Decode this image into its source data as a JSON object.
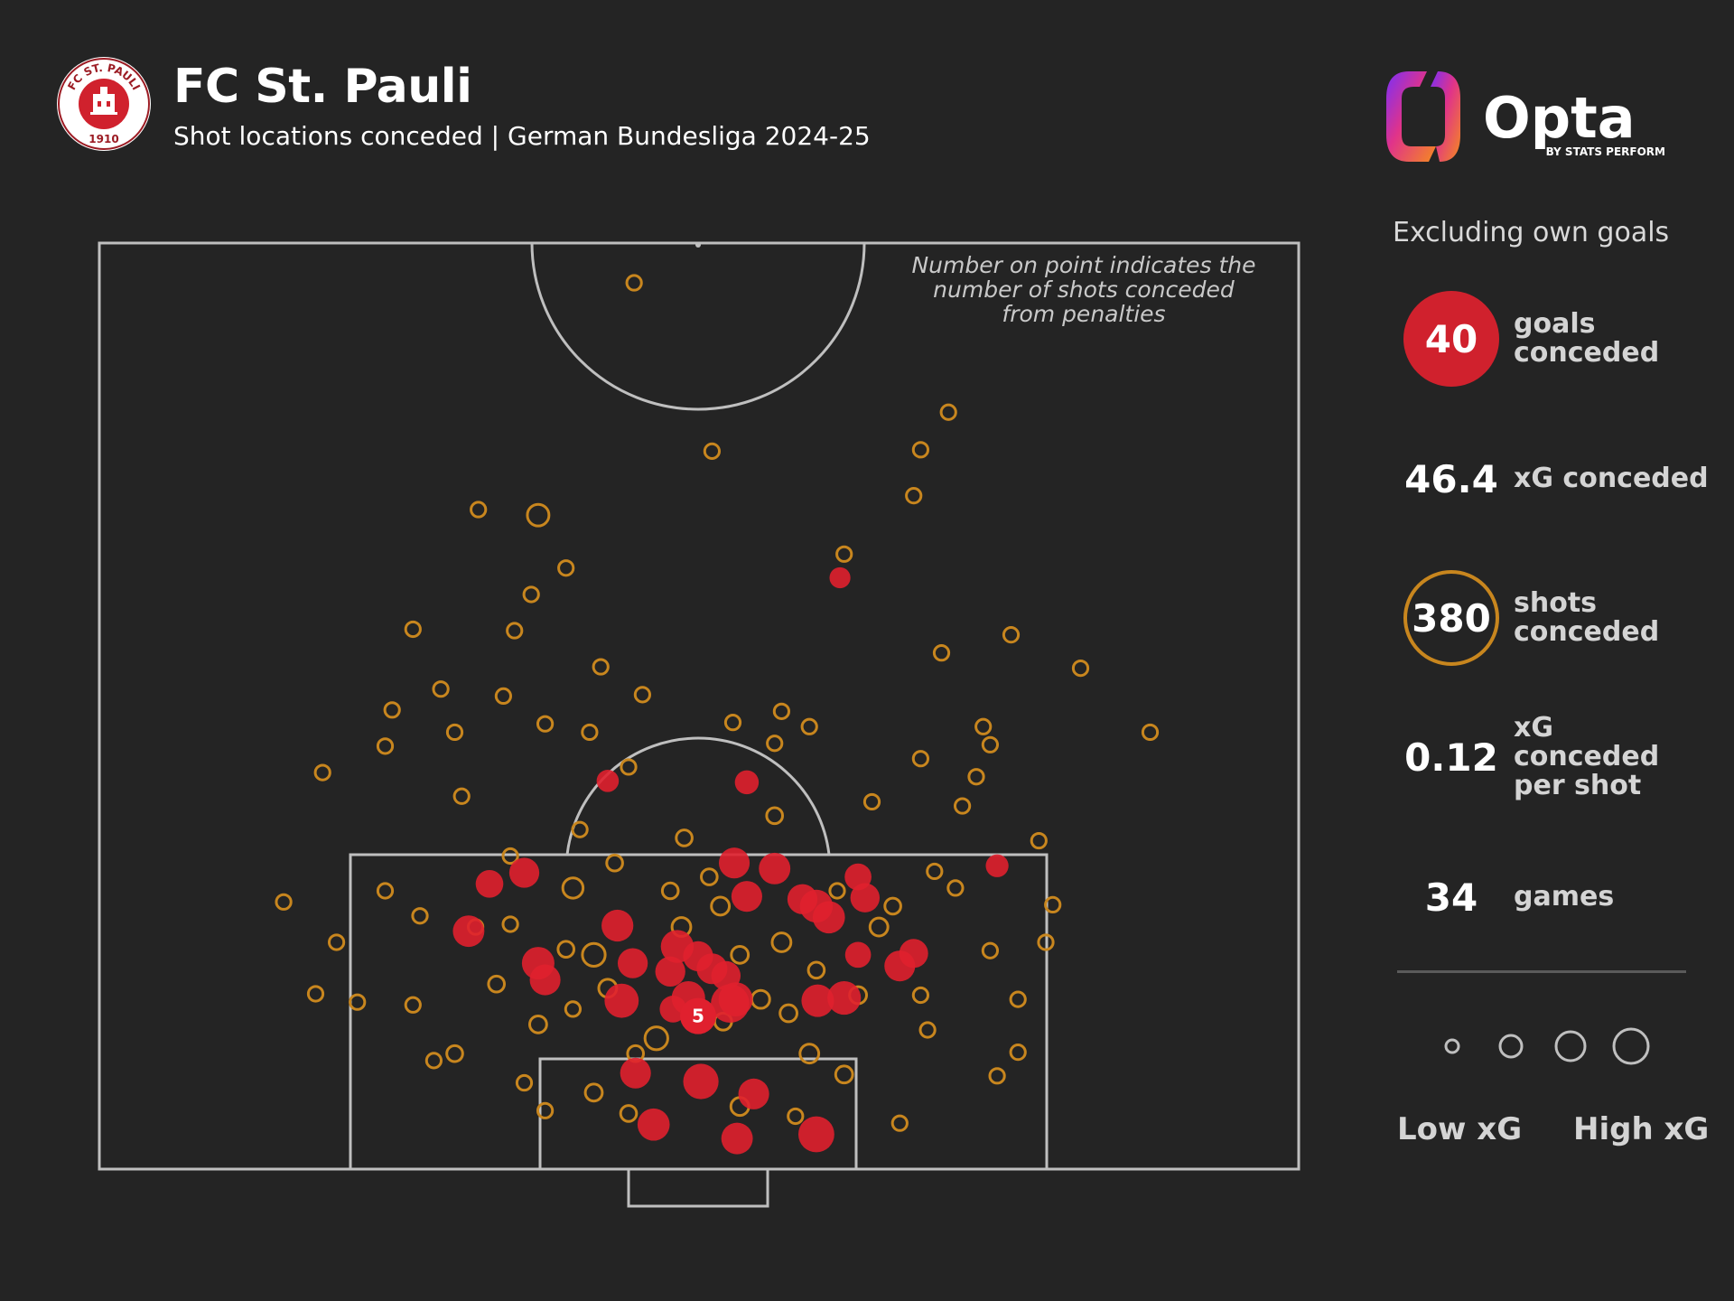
{
  "header": {
    "team": "FC St. Pauli",
    "subtitle": "Shot locations conceded | German Bundesliga 2024-25",
    "crest_text": "FC ST. PAULI",
    "crest_year": "1910"
  },
  "brand": {
    "name": "Opta",
    "byline": "BY STATS PERFORM"
  },
  "note": "Number on point indicates the number of shots conceded from penalties",
  "stats": {
    "filter": "Excluding own goals",
    "goals": {
      "value": "40",
      "label": "goals conceded"
    },
    "xg": {
      "value": "46.4",
      "label": "xG conceded"
    },
    "shots": {
      "value": "380",
      "label": "shots conceded"
    },
    "xg_per_shot": {
      "value": "0.12",
      "label": "xG conceded per shot"
    },
    "games": {
      "value": "34",
      "label": "games"
    }
  },
  "legend": {
    "low": "Low xG",
    "high": "High xG"
  },
  "colors": {
    "background": "#242424",
    "goal": "#e0202e",
    "shot": "#c8861e",
    "lines": "#bfbfbf"
  },
  "chart_data": {
    "type": "scatter",
    "penalty_label": "5",
    "penalty_point": {
      "x": 0,
      "y": 11
    },
    "series": [
      {
        "name": "goals conceded",
        "points": [
          {
            "x": 8.5,
            "y": 2.5,
            "xg": 0.46
          },
          {
            "x": 2.8,
            "y": 2.2,
            "xg": 0.32
          },
          {
            "x": -3.2,
            "y": 3.2,
            "xg": 0.34
          },
          {
            "x": 0.2,
            "y": 6.3,
            "xg": 0.44
          },
          {
            "x": -4.5,
            "y": 6.9,
            "xg": 0.3
          },
          {
            "x": -5.5,
            "y": 12.1,
            "xg": 0.4
          },
          {
            "x": -0.7,
            "y": 12.3,
            "xg": 0.38
          },
          {
            "x": 2.3,
            "y": 11.9,
            "xg": 0.55
          },
          {
            "x": 2.7,
            "y": 12.2,
            "xg": 0.4
          },
          {
            "x": 8.6,
            "y": 12.1,
            "xg": 0.35
          },
          {
            "x": 10.5,
            "y": 12.3,
            "xg": 0.38
          },
          {
            "x": 14.5,
            "y": 14.6,
            "xg": 0.3
          },
          {
            "x": 15.5,
            "y": 15.5,
            "xg": 0.25
          },
          {
            "x": -11.5,
            "y": 14.8,
            "xg": 0.35
          },
          {
            "x": -11.0,
            "y": 13.6,
            "xg": 0.3
          },
          {
            "x": -16.5,
            "y": 17.1,
            "xg": 0.32
          },
          {
            "x": -5.8,
            "y": 17.5,
            "xg": 0.33
          },
          {
            "x": -1.5,
            "y": 16.0,
            "xg": 0.36
          },
          {
            "x": 2.6,
            "y": 22.0,
            "xg": 0.3
          },
          {
            "x": 5.5,
            "y": 21.6,
            "xg": 0.32
          },
          {
            "x": 8.5,
            "y": 18.9,
            "xg": 0.36
          },
          {
            "x": 9.4,
            "y": 18.1,
            "xg": 0.34
          },
          {
            "x": 12.0,
            "y": 19.5,
            "xg": 0.26
          },
          {
            "x": -4.7,
            "y": 14.8,
            "xg": 0.28
          },
          {
            "x": 0.0,
            "y": 15.3,
            "xg": 0.28
          },
          {
            "x": 1.0,
            "y": 14.4,
            "xg": 0.3
          },
          {
            "x": -2.0,
            "y": 14.2,
            "xg": 0.28
          },
          {
            "x": 2.0,
            "y": 13.9,
            "xg": 0.26
          },
          {
            "x": 3.5,
            "y": 19.6,
            "xg": 0.3
          },
          {
            "x": 7.5,
            "y": 19.4,
            "xg": 0.28
          },
          {
            "x": -15.0,
            "y": 20.5,
            "xg": 0.22
          },
          {
            "x": 11.5,
            "y": 15.4,
            "xg": 0.18
          },
          {
            "x": -12.5,
            "y": 21.3,
            "xg": 0.28
          },
          {
            "x": 11.5,
            "y": 21.0,
            "xg": 0.2
          },
          {
            "x": 3.5,
            "y": 27.8,
            "xg": 0.14
          },
          {
            "x": -6.5,
            "y": 27.9,
            "xg": 0.11
          },
          {
            "x": 21.5,
            "y": 21.8,
            "xg": 0.12
          },
          {
            "x": 10.2,
            "y": 42.5,
            "xg": 0.09
          },
          {
            "x": 4.0,
            "y": 5.4,
            "xg": 0.3
          },
          {
            "x": -1.8,
            "y": 11.5,
            "xg": 0.2
          }
        ]
      },
      {
        "name": "shots conceded",
        "points": [
          {
            "x": -4.6,
            "y": 63.7,
            "xg": 0.02
          },
          {
            "x": 1.0,
            "y": 51.6,
            "xg": 0.02
          },
          {
            "x": 18.0,
            "y": 54.4,
            "xg": 0.02
          },
          {
            "x": 16.0,
            "y": 51.7,
            "xg": 0.02
          },
          {
            "x": 15.5,
            "y": 48.4,
            "xg": 0.02
          },
          {
            "x": -11.5,
            "y": 47.0,
            "xg": 0.1
          },
          {
            "x": -20.5,
            "y": 38.8,
            "xg": 0.02
          },
          {
            "x": -15.8,
            "y": 47.4,
            "xg": 0.02
          },
          {
            "x": -12.0,
            "y": 41.3,
            "xg": 0.02
          },
          {
            "x": -9.5,
            "y": 43.2,
            "xg": 0.02
          },
          {
            "x": -7.0,
            "y": 36.1,
            "xg": 0.02
          },
          {
            "x": -4.0,
            "y": 34.1,
            "xg": 0.02
          },
          {
            "x": 5.5,
            "y": 30.6,
            "xg": 0.02
          },
          {
            "x": 8.0,
            "y": 31.8,
            "xg": 0.02
          },
          {
            "x": 10.5,
            "y": 44.2,
            "xg": 0.02
          },
          {
            "x": 17.5,
            "y": 37.1,
            "xg": 0.02
          },
          {
            "x": 22.5,
            "y": 38.4,
            "xg": 0.02
          },
          {
            "x": 32.5,
            "y": 31.4,
            "xg": 0.02
          },
          {
            "x": 27.5,
            "y": 36.0,
            "xg": 0.02
          },
          {
            "x": 20.5,
            "y": 31.8,
            "xg": 0.02
          },
          {
            "x": -13.2,
            "y": 38.7,
            "xg": 0.02
          },
          {
            "x": -22.5,
            "y": 30.4,
            "xg": 0.02
          },
          {
            "x": -27.0,
            "y": 28.5,
            "xg": 0.02
          },
          {
            "x": -29.8,
            "y": 19.2,
            "xg": 0.02
          },
          {
            "x": -17.0,
            "y": 26.8,
            "xg": 0.02
          },
          {
            "x": -8.5,
            "y": 24.4,
            "xg": 0.02
          },
          {
            "x": -5.0,
            "y": 28.9,
            "xg": 0.02
          },
          {
            "x": 12.5,
            "y": 26.4,
            "xg": 0.02
          },
          {
            "x": 17.0,
            "y": 21.4,
            "xg": 0.02
          },
          {
            "x": 24.5,
            "y": 23.6,
            "xg": 0.02
          },
          {
            "x": 19.0,
            "y": 26.1,
            "xg": 0.02
          },
          {
            "x": 21.0,
            "y": 30.5,
            "xg": 0.02
          },
          {
            "x": -18.5,
            "y": 34.5,
            "xg": 0.02
          },
          {
            "x": -14.0,
            "y": 34.0,
            "xg": 0.02
          },
          {
            "x": -22.0,
            "y": 33.0,
            "xg": 0.02
          },
          {
            "x": -17.5,
            "y": 31.4,
            "xg": 0.02
          },
          {
            "x": -11.0,
            "y": 32.0,
            "xg": 0.02
          },
          {
            "x": -7.8,
            "y": 31.4,
            "xg": 0.02
          },
          {
            "x": 2.5,
            "y": 32.1,
            "xg": 0.02
          },
          {
            "x": 6.0,
            "y": 32.9,
            "xg": 0.02
          },
          {
            "x": 16.0,
            "y": 29.5,
            "xg": 0.02
          },
          {
            "x": 20.0,
            "y": 28.2,
            "xg": 0.02
          },
          {
            "x": -26.0,
            "y": 16.3,
            "xg": 0.02
          },
          {
            "x": -27.5,
            "y": 12.6,
            "xg": 0.02
          },
          {
            "x": -20.5,
            "y": 11.8,
            "xg": 0.02
          },
          {
            "x": -19.0,
            "y": 7.8,
            "xg": 0.02
          },
          {
            "x": -11.0,
            "y": 4.2,
            "xg": 0.02
          },
          {
            "x": -12.5,
            "y": 6.2,
            "xg": 0.02
          },
          {
            "x": 10.5,
            "y": 6.8,
            "xg": 0.04
          },
          {
            "x": 14.5,
            "y": 3.3,
            "xg": 0.02
          },
          {
            "x": 21.5,
            "y": 6.7,
            "xg": 0.02
          },
          {
            "x": 16.5,
            "y": 10.0,
            "xg": 0.02
          },
          {
            "x": 21.0,
            "y": 15.7,
            "xg": 0.02
          },
          {
            "x": 25.0,
            "y": 16.3,
            "xg": 0.02
          },
          {
            "x": 23.0,
            "y": 12.2,
            "xg": 0.02
          },
          {
            "x": -13.5,
            "y": 22.5,
            "xg": 0.02
          },
          {
            "x": -16.0,
            "y": 17.4,
            "xg": 0.02
          },
          {
            "x": -9.0,
            "y": 20.2,
            "xg": 0.08
          },
          {
            "x": -7.5,
            "y": 15.4,
            "xg": 0.12
          },
          {
            "x": -3.0,
            "y": 9.4,
            "xg": 0.12
          },
          {
            "x": -1.2,
            "y": 17.4,
            "xg": 0.06
          },
          {
            "x": 1.6,
            "y": 18.9,
            "xg": 0.05
          },
          {
            "x": 6.0,
            "y": 16.3,
            "xg": 0.06
          },
          {
            "x": 8.0,
            "y": 8.3,
            "xg": 0.06
          },
          {
            "x": 1.8,
            "y": 10.6,
            "xg": 0.04
          },
          {
            "x": 3.0,
            "y": 4.5,
            "xg": 0.05
          },
          {
            "x": -11.5,
            "y": 10.4,
            "xg": 0.04
          },
          {
            "x": -4.5,
            "y": 8.3,
            "xg": 0.03
          },
          {
            "x": -7.5,
            "y": 5.5,
            "xg": 0.04
          },
          {
            "x": 13.0,
            "y": 17.4,
            "xg": 0.05
          },
          {
            "x": 11.5,
            "y": 12.5,
            "xg": 0.04
          },
          {
            "x": -17.5,
            "y": 8.3,
            "xg": 0.03
          },
          {
            "x": 5.5,
            "y": 25.4,
            "xg": 0.03
          },
          {
            "x": -6.0,
            "y": 22.0,
            "xg": 0.03
          },
          {
            "x": -1.0,
            "y": 23.8,
            "xg": 0.03
          },
          {
            "x": 3.0,
            "y": 15.4,
            "xg": 0.04
          },
          {
            "x": 4.5,
            "y": 12.2,
            "xg": 0.05
          },
          {
            "x": 6.5,
            "y": 11.2,
            "xg": 0.04
          },
          {
            "x": -6.5,
            "y": 13.0,
            "xg": 0.05
          },
          {
            "x": -14.5,
            "y": 13.3,
            "xg": 0.03
          },
          {
            "x": -9.5,
            "y": 15.8,
            "xg": 0.03
          },
          {
            "x": 8.5,
            "y": 14.3,
            "xg": 0.03
          },
          {
            "x": 14.0,
            "y": 18.9,
            "xg": 0.03
          },
          {
            "x": 18.5,
            "y": 20.2,
            "xg": 0.02
          },
          {
            "x": -22.5,
            "y": 20.0,
            "xg": 0.02
          },
          {
            "x": -20.0,
            "y": 18.2,
            "xg": 0.02
          },
          {
            "x": -24.5,
            "y": 12.0,
            "xg": 0.02
          },
          {
            "x": 25.5,
            "y": 19.0,
            "xg": 0.02
          },
          {
            "x": 23.0,
            "y": 8.4,
            "xg": 0.02
          },
          {
            "x": -2.0,
            "y": 20.0,
            "xg": 0.03
          },
          {
            "x": 0.8,
            "y": 21.0,
            "xg": 0.03
          },
          {
            "x": -13.5,
            "y": 17.6,
            "xg": 0.02
          },
          {
            "x": 10.0,
            "y": 20.0,
            "xg": 0.02
          },
          {
            "x": 16.0,
            "y": 12.5,
            "xg": 0.02
          },
          {
            "x": -9.0,
            "y": 11.5,
            "xg": 0.02
          },
          {
            "x": 7.0,
            "y": 3.8,
            "xg": 0.02
          },
          {
            "x": -5.0,
            "y": 4.0,
            "xg": 0.03
          }
        ]
      }
    ]
  }
}
